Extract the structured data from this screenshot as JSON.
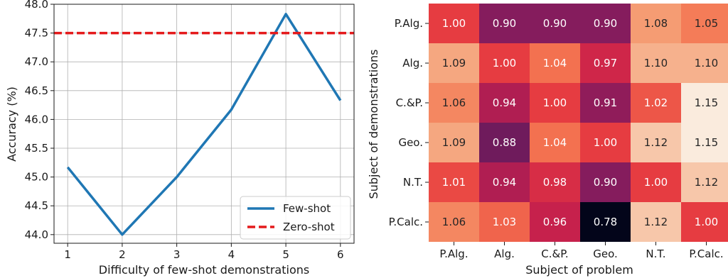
{
  "chart_data": [
    {
      "type": "line",
      "title": "",
      "xlabel": "Difficulty of few-shot demonstrations",
      "ylabel": "Accuracy (%)",
      "x": [
        1,
        2,
        3,
        4,
        5,
        6
      ],
      "xticks": [
        "1",
        "2",
        "3",
        "4",
        "5",
        "6"
      ],
      "yticks": [
        "44.0",
        "44.5",
        "45.0",
        "45.5",
        "46.0",
        "46.5",
        "47.0",
        "47.5",
        "48.0"
      ],
      "xlim": [
        0.75,
        6.25
      ],
      "ylim": [
        43.85,
        48.0
      ],
      "grid": true,
      "legend_position": "bottom-right",
      "series": [
        {
          "name": "Few-shot",
          "values": [
            45.17,
            44.0,
            45.0,
            46.17,
            47.83,
            46.33
          ],
          "color": "#1f77b4",
          "style": "solid"
        },
        {
          "name": "Zero-shot",
          "values": [
            47.5,
            47.5,
            47.5,
            47.5,
            47.5,
            47.5
          ],
          "color": "#e41a1c",
          "style": "dashed"
        }
      ]
    },
    {
      "type": "heatmap",
      "title": "",
      "xlabel": "Subject of problem",
      "ylabel": "Subject of demonstrations",
      "x_categories": [
        "P.Alg.",
        "Alg.",
        "C.&P.",
        "Geo.",
        "N.T.",
        "P.Calc."
      ],
      "y_categories": [
        "P.Alg.",
        "Alg.",
        "C.&P.",
        "Geo.",
        "N.T.",
        "P.Calc."
      ],
      "values": [
        [
          1.0,
          0.9,
          0.9,
          0.9,
          1.08,
          1.05
        ],
        [
          1.09,
          1.0,
          1.04,
          0.97,
          1.1,
          1.1
        ],
        [
          1.06,
          0.94,
          1.0,
          0.91,
          1.02,
          1.15
        ],
        [
          1.09,
          0.88,
          1.04,
          1.0,
          1.12,
          1.15
        ],
        [
          1.01,
          0.94,
          0.98,
          0.9,
          1.0,
          1.12
        ],
        [
          1.06,
          1.03,
          0.96,
          0.78,
          1.12,
          1.0
        ]
      ],
      "colormap": "rocket",
      "vmin": 0.78,
      "vmax": 1.15
    }
  ]
}
